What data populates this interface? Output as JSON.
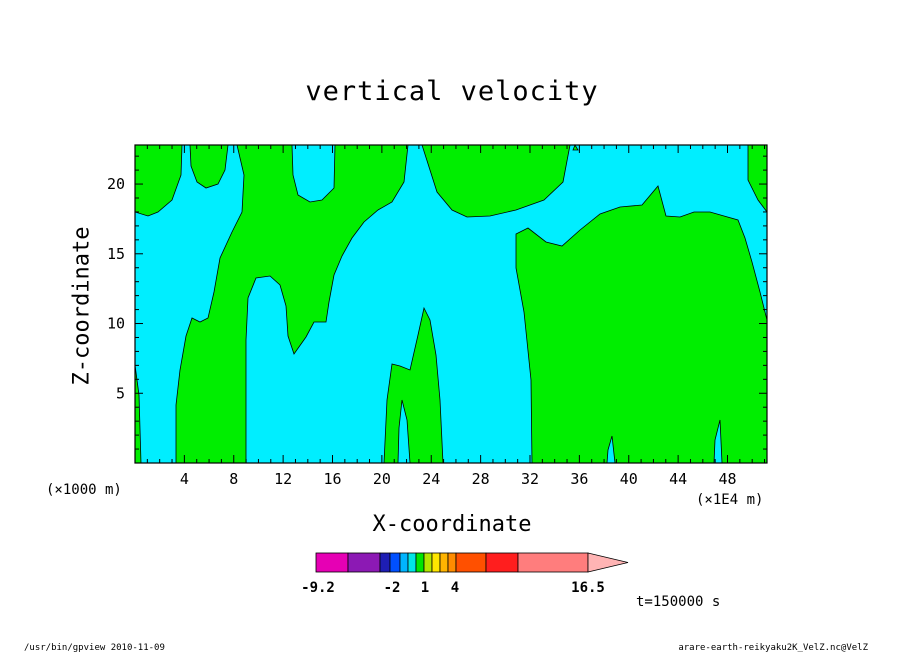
{
  "chart_data": {
    "type": "contour",
    "title": "vertical velocity",
    "xlabel": "X-coordinate",
    "ylabel": "Z-coordinate",
    "x_unit_left": "(×1000 m)",
    "x_unit_right": "(×1E4 m)",
    "x_ticks": [
      4,
      8,
      12,
      16,
      20,
      24,
      28,
      32,
      36,
      40,
      44,
      48
    ],
    "y_ticks": [
      5,
      10,
      15,
      20
    ],
    "xlim": [
      0,
      51.2
    ],
    "ylim": [
      0,
      22.8
    ],
    "fill_colors": {
      "negative": "#00eeff",
      "positive": "#00ee00"
    },
    "colorbar": {
      "colors": [
        "#e600b4",
        "#8c19b4",
        "#1e1eb4",
        "#0050ff",
        "#00b4ff",
        "#00e6e6",
        "#00e600",
        "#b4e600",
        "#ffe600",
        "#ffb400",
        "#ff8c00",
        "#ff5000",
        "#ff1e1e",
        "#ff7d7d",
        "#ffb4b4"
      ],
      "labels": [
        "-9.2",
        "-2",
        "1",
        "4",
        "16.5"
      ]
    },
    "annotation": "t=150000 s"
  },
  "footer": {
    "left": "/usr/bin/gpview  2010-11-09",
    "right": "arare-earth-reikyaku2K_VelZ.nc@VelZ"
  }
}
